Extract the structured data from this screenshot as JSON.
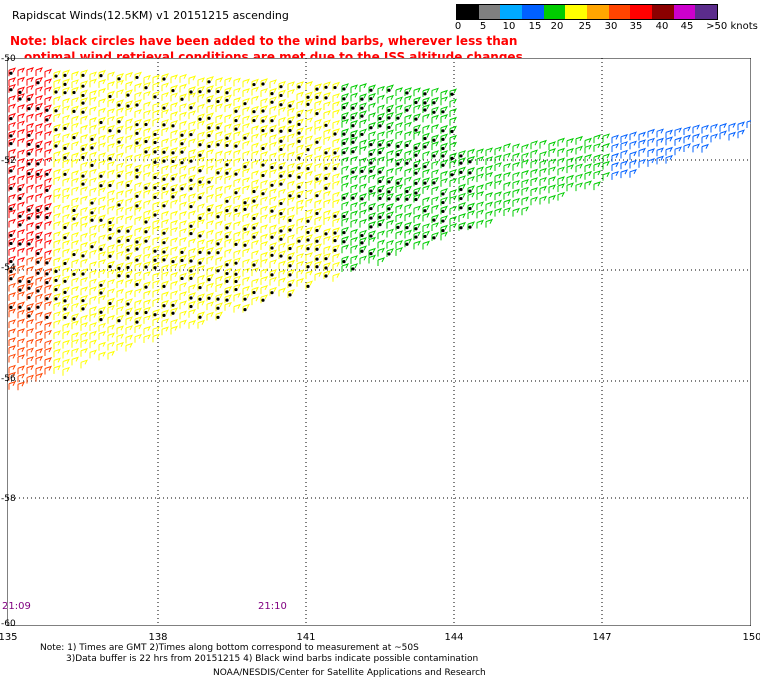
{
  "header": {
    "title": "Rapidscat Winds(12.5KM) v1 20151215 ascending",
    "note_line1": "Note: black circles have been added to the wind barbs, wherever less than",
    "note_line2": "optimal wind retrieval conditions are met due to the ISS altitude changes."
  },
  "colorbar": {
    "labels": [
      "0",
      "5",
      "10",
      "15",
      "20",
      "25",
      "30",
      "35",
      "40",
      "45",
      ">50 knots"
    ],
    "colors": [
      "#000000",
      "#808080",
      "#00aaff",
      "#0060ff",
      "#00cc00",
      "#ffff00",
      "#ffa500",
      "#ff4400",
      "#ff0000",
      "#8b0000",
      "#cc00cc",
      "#5b2c8c"
    ]
  },
  "map": {
    "lon_labels": [
      "135",
      "138",
      "141",
      "144",
      "147",
      "150"
    ],
    "lat_labels": [
      "-50",
      "-52",
      "-54",
      "-56",
      "-58",
      "-60"
    ],
    "time_labels": [
      "21:09",
      "21:10"
    ]
  },
  "footer": {
    "line1": "Note: 1) Times are GMT 2)Times along bottom correspond to measurement at ~50S",
    "line2": "3)Data buffer is 22 hrs from 20151215 4) Black wind barbs indicate possible contamination",
    "line3": "NOAA/NESDIS/Center for Satellite Applications and Research"
  }
}
